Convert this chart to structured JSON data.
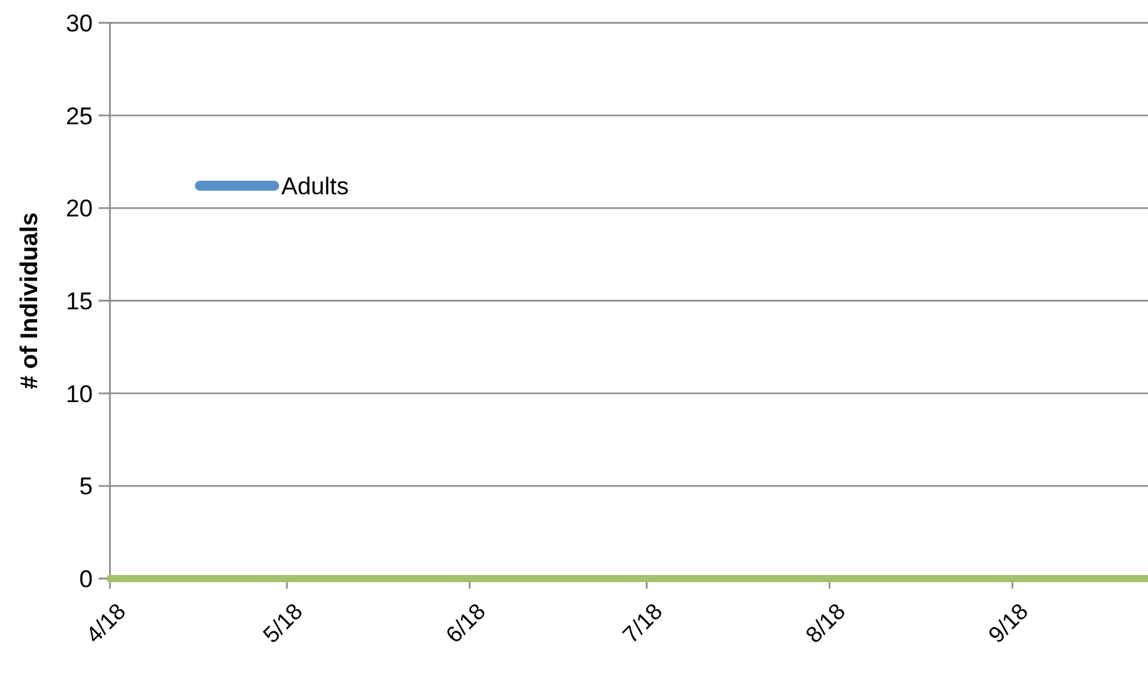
{
  "chart_data": {
    "type": "line",
    "ylabel": "# of Individuals",
    "x": [
      "--04-18",
      "--05-18",
      "--06-18",
      "--07-18",
      "--08-18",
      "--09-18",
      "--10-11"
    ],
    "series": [
      {
        "name": "Adults",
        "color": "#5b8fc7",
        "values": [
          null,
          null,
          null,
          null,
          null,
          null,
          null
        ]
      },
      {
        "color": "#a4c26a",
        "values": [
          0,
          0,
          0,
          0,
          0,
          0,
          0
        ]
      }
    ],
    "xlim": [
      "--04-18",
      "--10-11"
    ],
    "xticks": [
      {
        "value": "--04-18",
        "label": "4/18"
      },
      {
        "value": "--05-18",
        "label": "5/18"
      },
      {
        "value": "--06-18",
        "label": "6/18"
      },
      {
        "value": "--07-18",
        "label": "7/18"
      },
      {
        "value": "--08-18",
        "label": "8/18"
      },
      {
        "value": "--09-18",
        "label": "9/18"
      }
    ],
    "ylim": [
      0,
      30
    ],
    "yticks": [
      0,
      5,
      10,
      15,
      20,
      25,
      30
    ],
    "grid": "y",
    "legend": "top left",
    "marker": "none",
    "line_style": "solid"
  }
}
